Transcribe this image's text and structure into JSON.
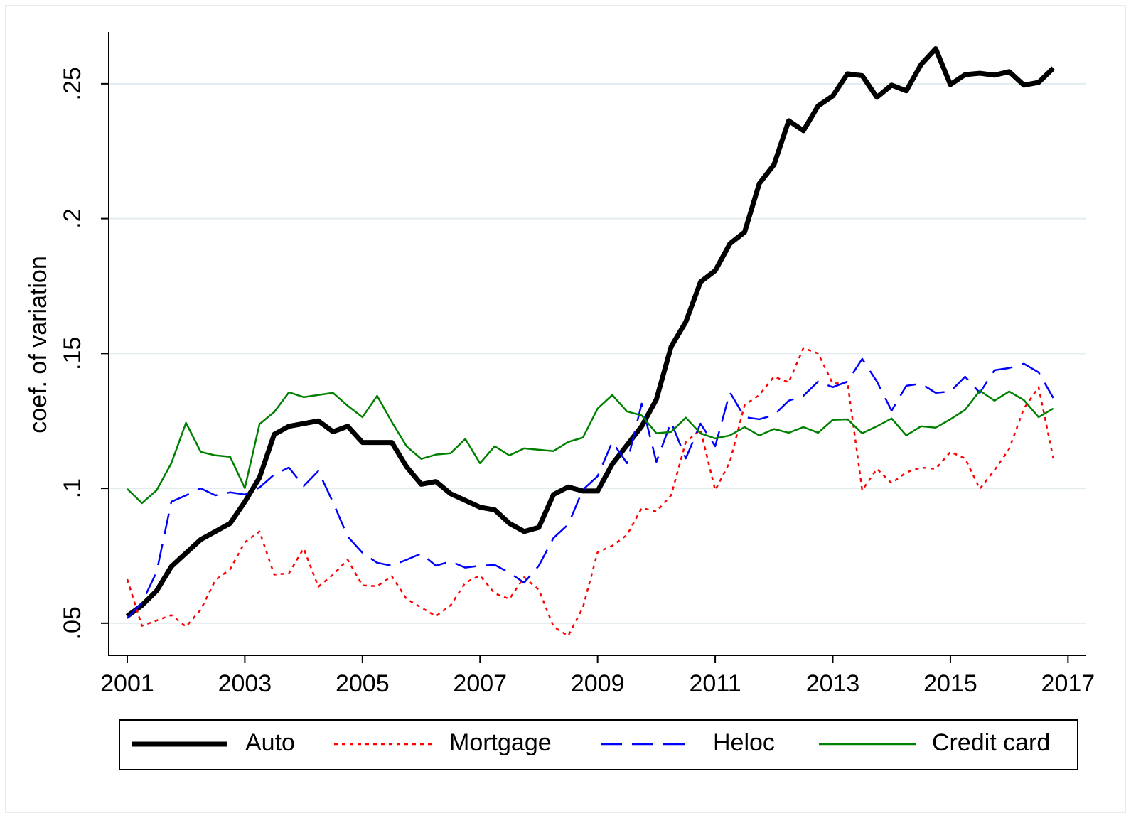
{
  "chart_data": {
    "type": "line",
    "y_label": "coef. of variation",
    "x": [
      2001,
      2001.25,
      2001.5,
      2001.75,
      2002,
      2002.25,
      2002.5,
      2002.75,
      2003,
      2003.25,
      2003.5,
      2003.75,
      2004,
      2004.25,
      2004.5,
      2004.75,
      2005,
      2005.25,
      2005.5,
      2005.75,
      2006,
      2006.25,
      2006.5,
      2006.75,
      2007,
      2007.25,
      2007.5,
      2007.75,
      2008,
      2008.25,
      2008.5,
      2008.75,
      2009,
      2009.25,
      2009.5,
      2009.75,
      2010,
      2010.25,
      2010.5,
      2010.75,
      2011,
      2011.25,
      2011.5,
      2011.75,
      2012,
      2012.25,
      2012.5,
      2012.75,
      2013,
      2013.25,
      2013.5,
      2013.75,
      2014,
      2014.25,
      2014.5,
      2014.75,
      2015,
      2015.25,
      2015.5,
      2015.75,
      2016,
      2016.25,
      2016.5,
      2016.75
    ],
    "series": [
      {
        "name": "Auto",
        "color": "#000000",
        "line_style": "thick",
        "values": [
          0.0526,
          0.0566,
          0.062,
          0.071,
          0.076,
          0.081,
          0.084,
          0.087,
          0.095,
          0.104,
          0.12,
          0.123,
          0.124,
          0.125,
          0.121,
          0.123,
          0.117,
          0.117,
          0.117,
          0.108,
          0.1015,
          0.1025,
          0.098,
          0.0955,
          0.093,
          0.092,
          0.087,
          0.084,
          0.0855,
          0.0977,
          0.1005,
          0.099,
          0.099,
          0.109,
          0.116,
          0.123,
          0.133,
          0.1525,
          0.1617,
          0.1765,
          0.1807,
          0.1907,
          0.195,
          0.213,
          0.22,
          0.2363,
          0.2326,
          0.2418,
          0.2455,
          0.2537,
          0.253,
          0.245,
          0.2495,
          0.2474,
          0.2571,
          0.263,
          0.2497,
          0.2534,
          0.2539,
          0.2532,
          0.2545,
          0.2495,
          0.2505,
          0.2558
        ]
      },
      {
        "name": "Mortgage",
        "color": "#ff0000",
        "line_style": "dotted",
        "values": [
          0.0663,
          0.049,
          0.051,
          0.053,
          0.0487,
          0.055,
          0.066,
          0.07,
          0.08,
          0.084,
          0.068,
          0.0685,
          0.0777,
          0.0635,
          0.068,
          0.0735,
          0.064,
          0.0637,
          0.0674,
          0.059,
          0.0558,
          0.0526,
          0.0566,
          0.065,
          0.0677,
          0.061,
          0.059,
          0.067,
          0.0624,
          0.0487,
          0.0453,
          0.0558,
          0.0763,
          0.0787,
          0.0827,
          0.0927,
          0.0914,
          0.0974,
          0.1172,
          0.1217,
          0.0993,
          0.1098,
          0.1309,
          0.1346,
          0.1414,
          0.1393,
          0.152,
          0.15,
          0.1388,
          0.1393,
          0.0993,
          0.1072,
          0.1019,
          0.1059,
          0.1077,
          0.1072,
          0.1135,
          0.1111,
          0.0998,
          0.1067,
          0.1146,
          0.1296,
          0.1375,
          0.1111
        ]
      },
      {
        "name": "Heloc",
        "color": "#0000ff",
        "line_style": "dashed",
        "values": [
          0.0518,
          0.0576,
          0.069,
          0.095,
          0.0974,
          0.1,
          0.0974,
          0.0985,
          0.0977,
          0.1003,
          0.1051,
          0.1077,
          0.1008,
          0.1064,
          0.0948,
          0.0821,
          0.0761,
          0.0724,
          0.0713,
          0.0735,
          0.0758,
          0.0713,
          0.0729,
          0.0706,
          0.0713,
          0.0716,
          0.0687,
          0.065,
          0.0713,
          0.0816,
          0.0866,
          0.0995,
          0.1045,
          0.1172,
          0.1093,
          0.1314,
          0.1098,
          0.1246,
          0.1111,
          0.124,
          0.1156,
          0.1356,
          0.1264,
          0.1256,
          0.1272,
          0.1325,
          0.1343,
          0.1396,
          0.1375,
          0.1396,
          0.148,
          0.1396,
          0.1288,
          0.138,
          0.1388,
          0.1354,
          0.1359,
          0.1414,
          0.1354,
          0.1438,
          0.1446,
          0.1462,
          0.143,
          0.1335
        ]
      },
      {
        "name": "Credit card",
        "color": "#008000",
        "line_style": "solid",
        "values": [
          0.0998,
          0.0945,
          0.0993,
          0.1093,
          0.1243,
          0.1135,
          0.1122,
          0.1117,
          0.1001,
          0.1238,
          0.1283,
          0.1356,
          0.1338,
          0.1346,
          0.1354,
          0.1306,
          0.1264,
          0.1343,
          0.1246,
          0.1156,
          0.1109,
          0.1125,
          0.113,
          0.1183,
          0.1093,
          0.1156,
          0.1122,
          0.1148,
          0.1143,
          0.1138,
          0.1172,
          0.1188,
          0.1296,
          0.1346,
          0.1285,
          0.127,
          0.1204,
          0.1209,
          0.1262,
          0.1204,
          0.1185,
          0.1196,
          0.1227,
          0.1196,
          0.122,
          0.1206,
          0.1227,
          0.1206,
          0.1254,
          0.1256,
          0.1204,
          0.123,
          0.1259,
          0.1196,
          0.123,
          0.1225,
          0.1256,
          0.1291,
          0.1362,
          0.1325,
          0.1359,
          0.1327,
          0.1264,
          0.1296
        ]
      }
    ],
    "xlim": [
      2000.686,
      2017.31
    ],
    "xticks": [
      2001,
      2003,
      2005,
      2007,
      2009,
      2011,
      2013,
      2015,
      2017
    ],
    "ylim": [
      0.0381,
      0.2692
    ],
    "yticks": [
      {
        "value": 0.05,
        "label": ".05"
      },
      {
        "value": 0.1,
        "label": ".1"
      },
      {
        "value": 0.15,
        "label": ".15"
      },
      {
        "value": 0.2,
        "label": ".2"
      },
      {
        "value": 0.25,
        "label": ".25"
      }
    ],
    "grid": true,
    "legend": "bottom"
  }
}
